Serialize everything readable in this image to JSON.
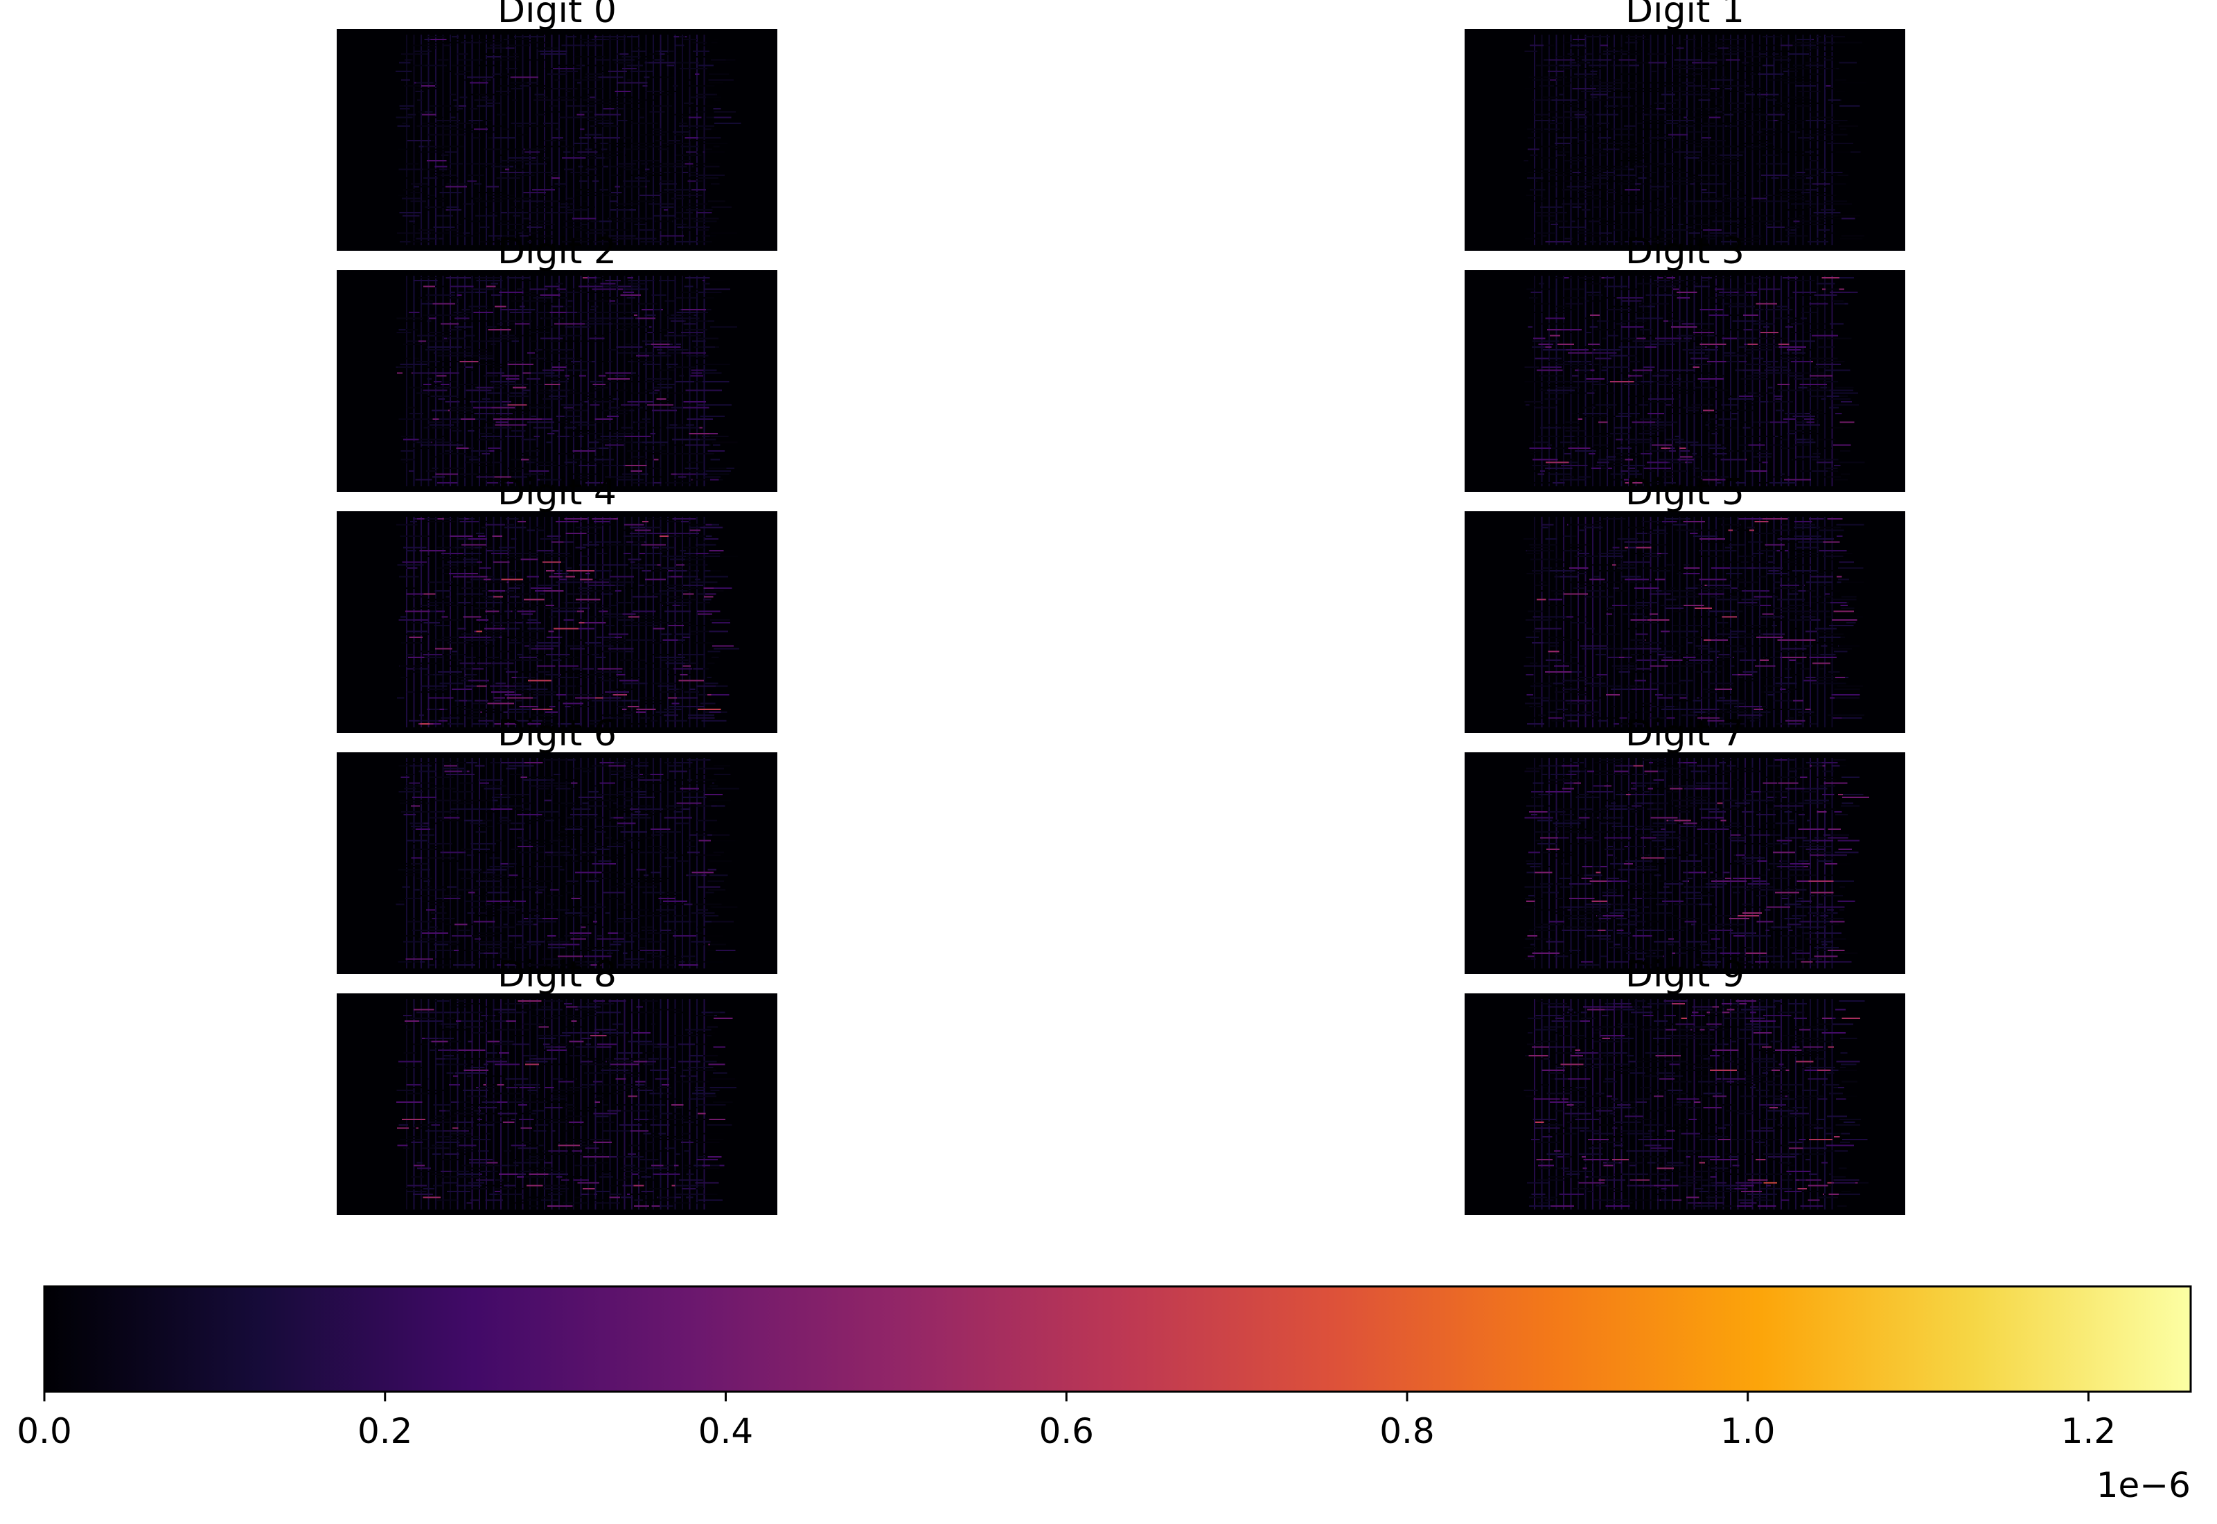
{
  "chart_data": {
    "type": "heatmap",
    "layout": "grid of 5 rows x 2 columns of heatmap panels sharing one horizontal colorbar",
    "colormap": "inferno",
    "panels": [
      {
        "title": "Digit 0",
        "column": 0,
        "row": 0,
        "intensity": 0.3
      },
      {
        "title": "Digit 1",
        "column": 1,
        "row": 0,
        "intensity": 0.22
      },
      {
        "title": "Digit 2",
        "column": 0,
        "row": 1,
        "intensity": 0.48
      },
      {
        "title": "Digit 3",
        "column": 1,
        "row": 1,
        "intensity": 0.52
      },
      {
        "title": "Digit 4",
        "column": 0,
        "row": 2,
        "intensity": 0.62
      },
      {
        "title": "Digit 5",
        "column": 1,
        "row": 2,
        "intensity": 0.55
      },
      {
        "title": "Digit 6",
        "column": 0,
        "row": 3,
        "intensity": 0.36
      },
      {
        "title": "Digit 7",
        "column": 1,
        "row": 3,
        "intensity": 0.5
      },
      {
        "title": "Digit 8",
        "column": 0,
        "row": 4,
        "intensity": 0.5
      },
      {
        "title": "Digit 9",
        "column": 1,
        "row": 4,
        "intensity": 0.6
      }
    ],
    "colorbar": {
      "orientation": "horizontal",
      "range": [
        0.0,
        1.26e-06
      ],
      "tick_values": [
        0.0,
        0.2,
        0.4,
        0.6,
        0.8,
        1.0,
        1.2
      ],
      "tick_labels": [
        "0.0",
        "0.2",
        "0.4",
        "0.6",
        "0.8",
        "1.0",
        "1.2"
      ],
      "scale_unit": 1e-06,
      "offset_label": "1e−6"
    }
  }
}
